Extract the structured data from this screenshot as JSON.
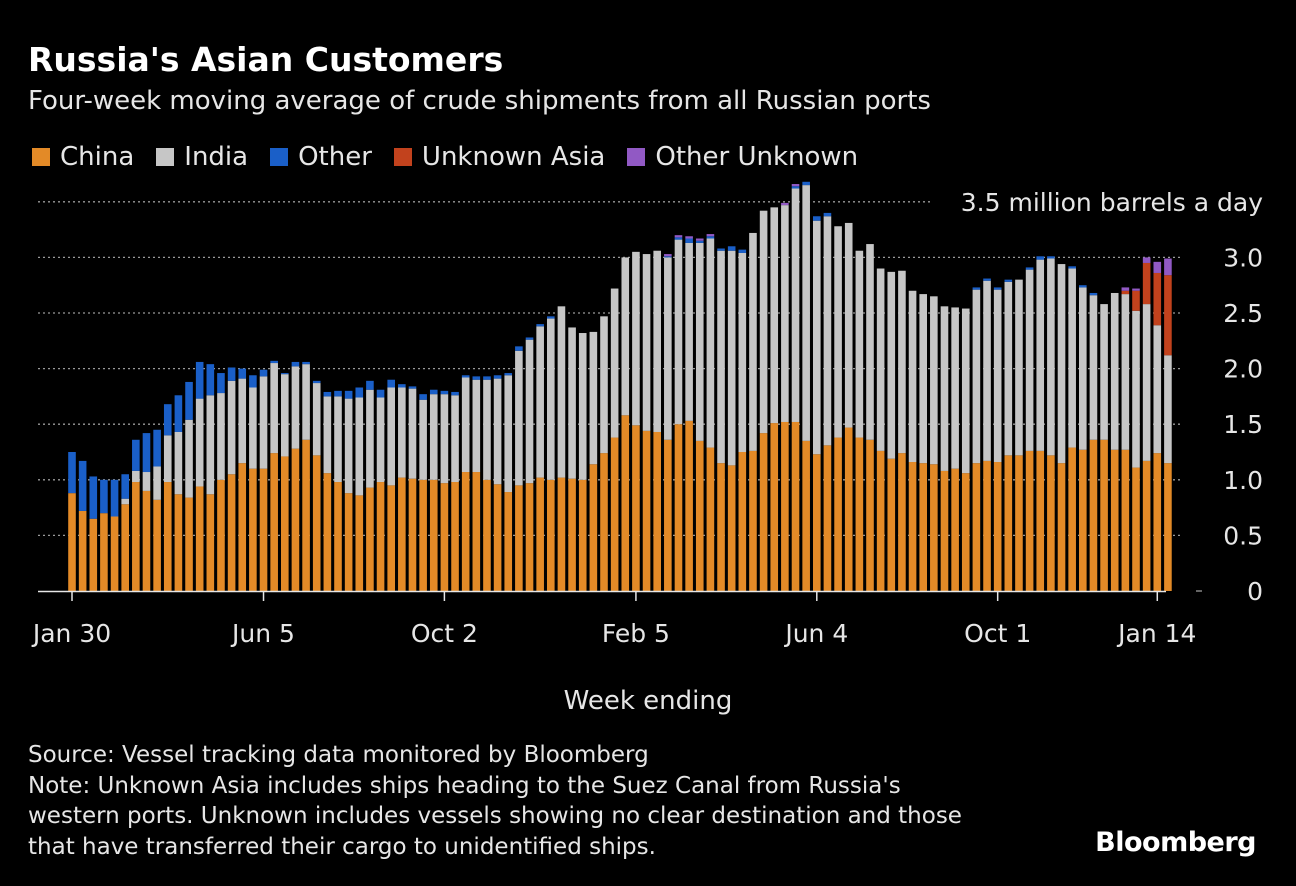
{
  "title": "Russia's Asian Customers",
  "subtitle": "Four-week moving average of crude shipments from all Russian ports",
  "legend": [
    {
      "label": "China",
      "color": "#e38a27"
    },
    {
      "label": "India",
      "color": "#c6c6c6"
    },
    {
      "label": "Other",
      "color": "#1a5fc8"
    },
    {
      "label": "Unknown Asia",
      "color": "#c2421d"
    },
    {
      "label": "Other Unknown",
      "color": "#9159c4"
    }
  ],
  "xlabel": "Week ending",
  "source": "Source: Vessel tracking data monitored by Bloomberg",
  "note": [
    "Note: Unknown Asia includes ships heading to the Suez Canal from Russia's",
    "western ports. Unknown includes vessels showing no clear destination and those",
    "that have transferred their cargo to unidentified ships."
  ],
  "brand": "Bloomberg",
  "chart_data": {
    "type": "bar",
    "stacked": true,
    "unit_label": "3.5 million barrels a day",
    "ylim": [
      0,
      3.5
    ],
    "yticks": [
      {
        "value": 0,
        "label": "0"
      },
      {
        "value": 0.5,
        "label": "0.5"
      },
      {
        "value": 1.0,
        "label": "1.0"
      },
      {
        "value": 1.5,
        "label": "1.5"
      },
      {
        "value": 2.0,
        "label": "2.0"
      },
      {
        "value": 2.5,
        "label": "2.5"
      },
      {
        "value": 3.0,
        "label": "3.0"
      }
    ],
    "xticks": [
      {
        "index": 0,
        "label": "Jan 30"
      },
      {
        "index": 18,
        "label": "Jun 5"
      },
      {
        "index": 35,
        "label": "Oct 2"
      },
      {
        "index": 53,
        "label": "Feb 5"
      },
      {
        "index": 70,
        "label": "Jun 4"
      },
      {
        "index": 87,
        "label": "Oct 1"
      },
      {
        "index": 102,
        "label": "Jan 14"
      }
    ],
    "grid": true,
    "legend_position": "top-left",
    "series": [
      {
        "name": "China",
        "color": "#e38a27",
        "values": [
          0.88,
          0.72,
          0.65,
          0.7,
          0.67,
          0.78,
          0.98,
          0.9,
          0.82,
          0.98,
          0.87,
          0.84,
          0.94,
          0.87,
          1.0,
          1.05,
          1.15,
          1.1,
          1.1,
          1.24,
          1.21,
          1.28,
          1.36,
          1.22,
          1.06,
          0.98,
          0.88,
          0.86,
          0.93,
          0.98,
          0.95,
          1.02,
          1.01,
          1.0,
          1.0,
          0.97,
          0.98,
          1.07,
          1.07,
          1.0,
          0.96,
          0.89,
          0.95,
          0.97,
          1.02,
          1.0,
          1.02,
          1.01,
          1.0,
          1.14,
          1.24,
          1.38,
          1.58,
          1.49,
          1.44,
          1.43,
          1.36,
          1.5,
          1.53,
          1.35,
          1.29,
          1.15,
          1.13,
          1.25,
          1.26,
          1.42,
          1.51,
          1.52,
          1.52,
          1.35,
          1.23,
          1.31,
          1.38,
          1.47,
          1.38,
          1.36,
          1.26,
          1.19,
          1.24,
          1.16,
          1.15,
          1.14,
          1.08,
          1.1,
          1.06,
          1.15,
          1.17,
          1.16,
          1.22,
          1.22,
          1.26,
          1.26,
          1.22,
          1.15,
          1.29,
          1.27,
          1.36,
          1.36,
          1.27,
          1.27,
          1.11,
          1.17,
          1.24,
          1.15
        ]
      },
      {
        "name": "India",
        "color": "#c6c6c6",
        "values": [
          0.0,
          0.0,
          0.0,
          0.0,
          0.0,
          0.05,
          0.1,
          0.17,
          0.3,
          0.42,
          0.56,
          0.7,
          0.79,
          0.89,
          0.78,
          0.84,
          0.76,
          0.73,
          0.83,
          0.81,
          0.74,
          0.74,
          0.68,
          0.65,
          0.69,
          0.77,
          0.85,
          0.88,
          0.88,
          0.76,
          0.88,
          0.81,
          0.81,
          0.72,
          0.77,
          0.8,
          0.78,
          0.85,
          0.83,
          0.9,
          0.95,
          1.05,
          1.21,
          1.29,
          1.36,
          1.45,
          1.54,
          1.36,
          1.32,
          1.19,
          1.23,
          1.34,
          1.42,
          1.56,
          1.59,
          1.63,
          1.64,
          1.66,
          1.6,
          1.78,
          1.88,
          1.91,
          1.93,
          1.79,
          1.96,
          2.0,
          1.94,
          1.95,
          2.1,
          2.3,
          2.1,
          2.06,
          1.9,
          1.84,
          1.68,
          1.76,
          1.64,
          1.68,
          1.64,
          1.54,
          1.52,
          1.51,
          1.48,
          1.45,
          1.48,
          1.56,
          1.62,
          1.55,
          1.56,
          1.58,
          1.63,
          1.72,
          1.77,
          1.79,
          1.61,
          1.46,
          1.3,
          1.22,
          1.41,
          1.4,
          1.41,
          1.41,
          1.15,
          0.97
        ]
      },
      {
        "name": "Other",
        "color": "#1a5fc8",
        "values": [
          0.37,
          0.45,
          0.38,
          0.3,
          0.33,
          0.22,
          0.28,
          0.35,
          0.33,
          0.28,
          0.33,
          0.34,
          0.33,
          0.28,
          0.18,
          0.12,
          0.09,
          0.11,
          0.06,
          0.02,
          0.01,
          0.04,
          0.02,
          0.02,
          0.04,
          0.05,
          0.07,
          0.09,
          0.08,
          0.07,
          0.07,
          0.03,
          0.02,
          0.05,
          0.04,
          0.03,
          0.03,
          0.02,
          0.03,
          0.03,
          0.03,
          0.02,
          0.04,
          0.02,
          0.02,
          0.02,
          0.0,
          0.0,
          0.0,
          0.0,
          0.0,
          0.0,
          0.0,
          0.0,
          0.0,
          0.0,
          0.01,
          0.02,
          0.04,
          0.02,
          0.02,
          0.02,
          0.04,
          0.03,
          0.0,
          0.0,
          0.0,
          0.0,
          0.02,
          0.03,
          0.04,
          0.03,
          0.0,
          0.0,
          0.0,
          0.0,
          0.0,
          0.0,
          0.0,
          0.0,
          0.0,
          0.0,
          0.0,
          0.0,
          0.0,
          0.02,
          0.02,
          0.02,
          0.02,
          0.0,
          0.02,
          0.03,
          0.02,
          0.0,
          0.02,
          0.02,
          0.02,
          0.0,
          0.0,
          0.0,
          0.0,
          0.0,
          0.0,
          0.0
        ]
      },
      {
        "name": "Unknown Asia",
        "color": "#c2421d",
        "values": [
          0,
          0,
          0,
          0,
          0,
          0,
          0,
          0,
          0,
          0,
          0,
          0,
          0,
          0,
          0,
          0,
          0,
          0,
          0,
          0,
          0,
          0,
          0,
          0,
          0,
          0,
          0,
          0,
          0,
          0,
          0,
          0,
          0,
          0,
          0,
          0,
          0,
          0,
          0,
          0,
          0,
          0,
          0,
          0,
          0,
          0,
          0,
          0,
          0,
          0,
          0,
          0,
          0,
          0,
          0,
          0,
          0,
          0,
          0,
          0,
          0,
          0,
          0,
          0,
          0,
          0,
          0,
          0,
          0,
          0,
          0,
          0,
          0,
          0,
          0,
          0,
          0,
          0,
          0,
          0,
          0,
          0,
          0,
          0,
          0,
          0,
          0,
          0,
          0,
          0,
          0,
          0,
          0,
          0,
          0,
          0,
          0,
          0,
          0,
          0.03,
          0.18,
          0.37,
          0.47,
          0.72
        ]
      },
      {
        "name": "Other Unknown",
        "color": "#9159c4",
        "values": [
          0,
          0,
          0,
          0,
          0,
          0,
          0,
          0,
          0,
          0,
          0,
          0,
          0,
          0,
          0,
          0,
          0,
          0,
          0,
          0,
          0,
          0,
          0,
          0,
          0,
          0,
          0,
          0,
          0,
          0,
          0,
          0,
          0,
          0,
          0,
          0,
          0,
          0,
          0,
          0,
          0,
          0,
          0,
          0,
          0,
          0,
          0,
          0,
          0,
          0,
          0,
          0,
          0,
          0,
          0,
          0,
          0.02,
          0.02,
          0.02,
          0.02,
          0.02,
          0.0,
          0.0,
          0.0,
          0.0,
          0.0,
          0.0,
          0.02,
          0.02,
          0.0,
          0.0,
          0.0,
          0.0,
          0.0,
          0.0,
          0.0,
          0.0,
          0.0,
          0.0,
          0.0,
          0.0,
          0.0,
          0.0,
          0.0,
          0.0,
          0.0,
          0.0,
          0.0,
          0.0,
          0.0,
          0.0,
          0.0,
          0.0,
          0.0,
          0.0,
          0.0,
          0.0,
          0.0,
          0.0,
          0.03,
          0.02,
          0.05,
          0.1,
          0.15
        ]
      }
    ]
  }
}
